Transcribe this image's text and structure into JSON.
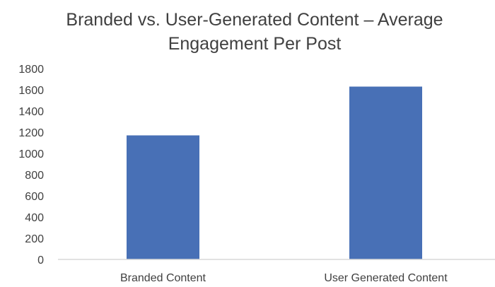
{
  "chart_data": {
    "type": "bar",
    "title_lines": [
      "Branded vs. User-Generated Content – Average",
      "Engagement Per Post"
    ],
    "categories": [
      "Branded Content",
      "User Generated Content"
    ],
    "values": [
      1170,
      1630
    ],
    "xlabel": "",
    "ylabel": "",
    "ylim": [
      0,
      1800
    ],
    "yticks": [
      "0",
      "200",
      "400",
      "600",
      "800",
      "1000",
      "1200",
      "1400",
      "1600",
      "1800"
    ],
    "grid": false,
    "bar_color": "#4870B6",
    "axis_color": "#D9D9D9"
  }
}
